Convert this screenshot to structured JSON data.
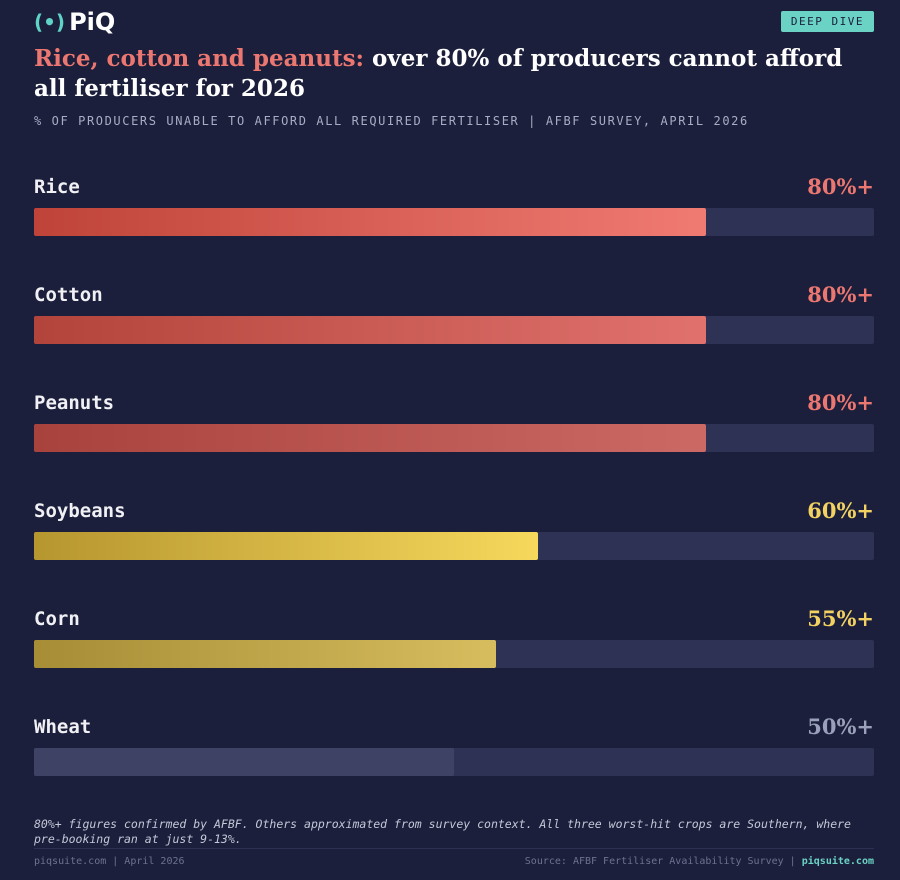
{
  "chart_data": {
    "type": "bar",
    "logo": "PiQ",
    "badge": "DEEP DIVE",
    "title_highlight": "Rice, cotton and peanuts:",
    "title": "over 80% of producers cannot afford all fertiliser for 2026",
    "subtitle": "% OF PRODUCERS UNABLE TO AFFORD ALL REQUIRED FERTILISER | AFBF SURVEY, APRIL 2026",
    "categories": [
      "Rice",
      "Cotton",
      "Peanuts",
      "Soybeans",
      "Corn",
      "Wheat"
    ],
    "values": [
      80,
      80,
      80,
      60,
      55,
      50
    ],
    "value_labels": [
      "80%+",
      "80%+",
      "80%+",
      "60%+",
      "55%+",
      "50%+"
    ],
    "colors": [
      [
        "#bf4338",
        "#f07b73"
      ],
      [
        "#b2443b",
        "#e0716d"
      ],
      [
        "#a8423c",
        "#cc6965"
      ],
      [
        "#b6962f",
        "#f6d85c"
      ],
      [
        "#a68d36",
        "#d7bd5e"
      ],
      [
        "#3e4365",
        "#3e4365"
      ]
    ],
    "label_colors": [
      "#ec7770",
      "#ec7770",
      "#ec7770",
      "#f3d262",
      "#f3d262",
      "#9aa0ba"
    ],
    "xlim": [
      0,
      100
    ],
    "footnote": "80%+ figures confirmed by AFBF. Others approximated from survey context. All three worst-hit crops are Southern, where pre-booking ran at just 9-13%.",
    "footer_left": "piqsuite.com | April 2026",
    "footer_source": "Source: AFBF Fertiliser Availability Survey |",
    "footer_link": "piqsuite.com"
  }
}
